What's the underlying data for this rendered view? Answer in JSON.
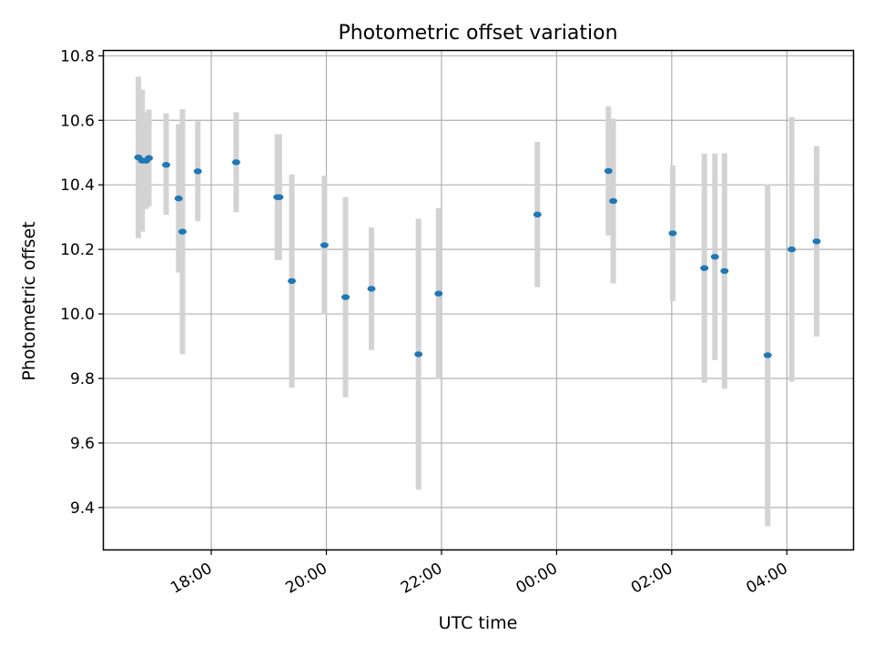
{
  "chart_data": {
    "type": "scatter",
    "title": "Photometric offset variation",
    "xlabel": "UTC time",
    "ylabel": "Photometric offset",
    "x_axis_type": "time",
    "xlim": [
      "16:08",
      "05:09"
    ],
    "ylim": [
      9.27,
      10.815
    ],
    "x_ticks": [
      "18:00",
      "20:00",
      "22:00",
      "00:00",
      "02:00",
      "04:00"
    ],
    "y_ticks": [
      "9.4",
      "9.6",
      "9.8",
      "10.0",
      "10.2",
      "10.4",
      "10.6",
      "10.8"
    ],
    "grid": true,
    "series": [
      {
        "marker_color": "#1f77b4",
        "errorbar_color": "#d3d3d3",
        "points": [
          {
            "time": "16:44",
            "y": 10.485,
            "yerr_low": 0.25,
            "yerr_high": 0.25
          },
          {
            "time": "16:48",
            "y": 10.475,
            "yerr_low": 0.22,
            "yerr_high": 0.22
          },
          {
            "time": "16:52",
            "y": 10.475,
            "yerr_low": 0.15,
            "yerr_high": 0.15
          },
          {
            "time": "16:55",
            "y": 10.483,
            "yerr_low": 0.15,
            "yerr_high": 0.15
          },
          {
            "time": "17:13",
            "y": 10.462,
            "yerr_low": 0.155,
            "yerr_high": 0.16
          },
          {
            "time": "17:26",
            "y": 10.358,
            "yerr_low": 0.23,
            "yerr_high": 0.23
          },
          {
            "time": "17:30",
            "y": 10.255,
            "yerr_low": 0.38,
            "yerr_high": 0.38
          },
          {
            "time": "17:46",
            "y": 10.442,
            "yerr_low": 0.155,
            "yerr_high": 0.155
          },
          {
            "time": "18:26",
            "y": 10.47,
            "yerr_low": 0.155,
            "yerr_high": 0.155
          },
          {
            "time": "19:09",
            "y": 10.362,
            "yerr_low": 0.195,
            "yerr_high": 0.195
          },
          {
            "time": "19:11",
            "y": 10.362,
            "yerr_low": 0.195,
            "yerr_high": 0.195
          },
          {
            "time": "19:24",
            "y": 10.102,
            "yerr_low": 0.33,
            "yerr_high": 0.33
          },
          {
            "time": "19:58",
            "y": 10.213,
            "yerr_low": 0.215,
            "yerr_high": 0.215
          },
          {
            "time": "20:20",
            "y": 10.052,
            "yerr_low": 0.31,
            "yerr_high": 0.31
          },
          {
            "time": "20:47",
            "y": 10.078,
            "yerr_low": 0.19,
            "yerr_high": 0.19
          },
          {
            "time": "21:36",
            "y": 9.875,
            "yerr_low": 0.42,
            "yerr_high": 0.42
          },
          {
            "time": "21:57",
            "y": 10.063,
            "yerr_low": 0.265,
            "yerr_high": 0.265
          },
          {
            "time": "23:40",
            "y": 10.308,
            "yerr_low": 0.225,
            "yerr_high": 0.225
          },
          {
            "time": "00:54",
            "y": 10.443,
            "yerr_low": 0.2,
            "yerr_high": 0.2
          },
          {
            "time": "00:59",
            "y": 10.35,
            "yerr_low": 0.255,
            "yerr_high": 0.255
          },
          {
            "time": "02:01",
            "y": 10.25,
            "yerr_low": 0.21,
            "yerr_high": 0.21
          },
          {
            "time": "02:34",
            "y": 10.142,
            "yerr_low": 0.355,
            "yerr_high": 0.355
          },
          {
            "time": "02:45",
            "y": 10.177,
            "yerr_low": 0.32,
            "yerr_high": 0.32
          },
          {
            "time": "02:55",
            "y": 10.133,
            "yerr_low": 0.365,
            "yerr_high": 0.365
          },
          {
            "time": "03:40",
            "y": 9.872,
            "yerr_low": 0.53,
            "yerr_high": 0.53
          },
          {
            "time": "04:05",
            "y": 10.2,
            "yerr_low": 0.41,
            "yerr_high": 0.41
          },
          {
            "time": "04:31",
            "y": 10.225,
            "yerr_low": 0.295,
            "yerr_high": 0.295
          }
        ]
      }
    ]
  }
}
